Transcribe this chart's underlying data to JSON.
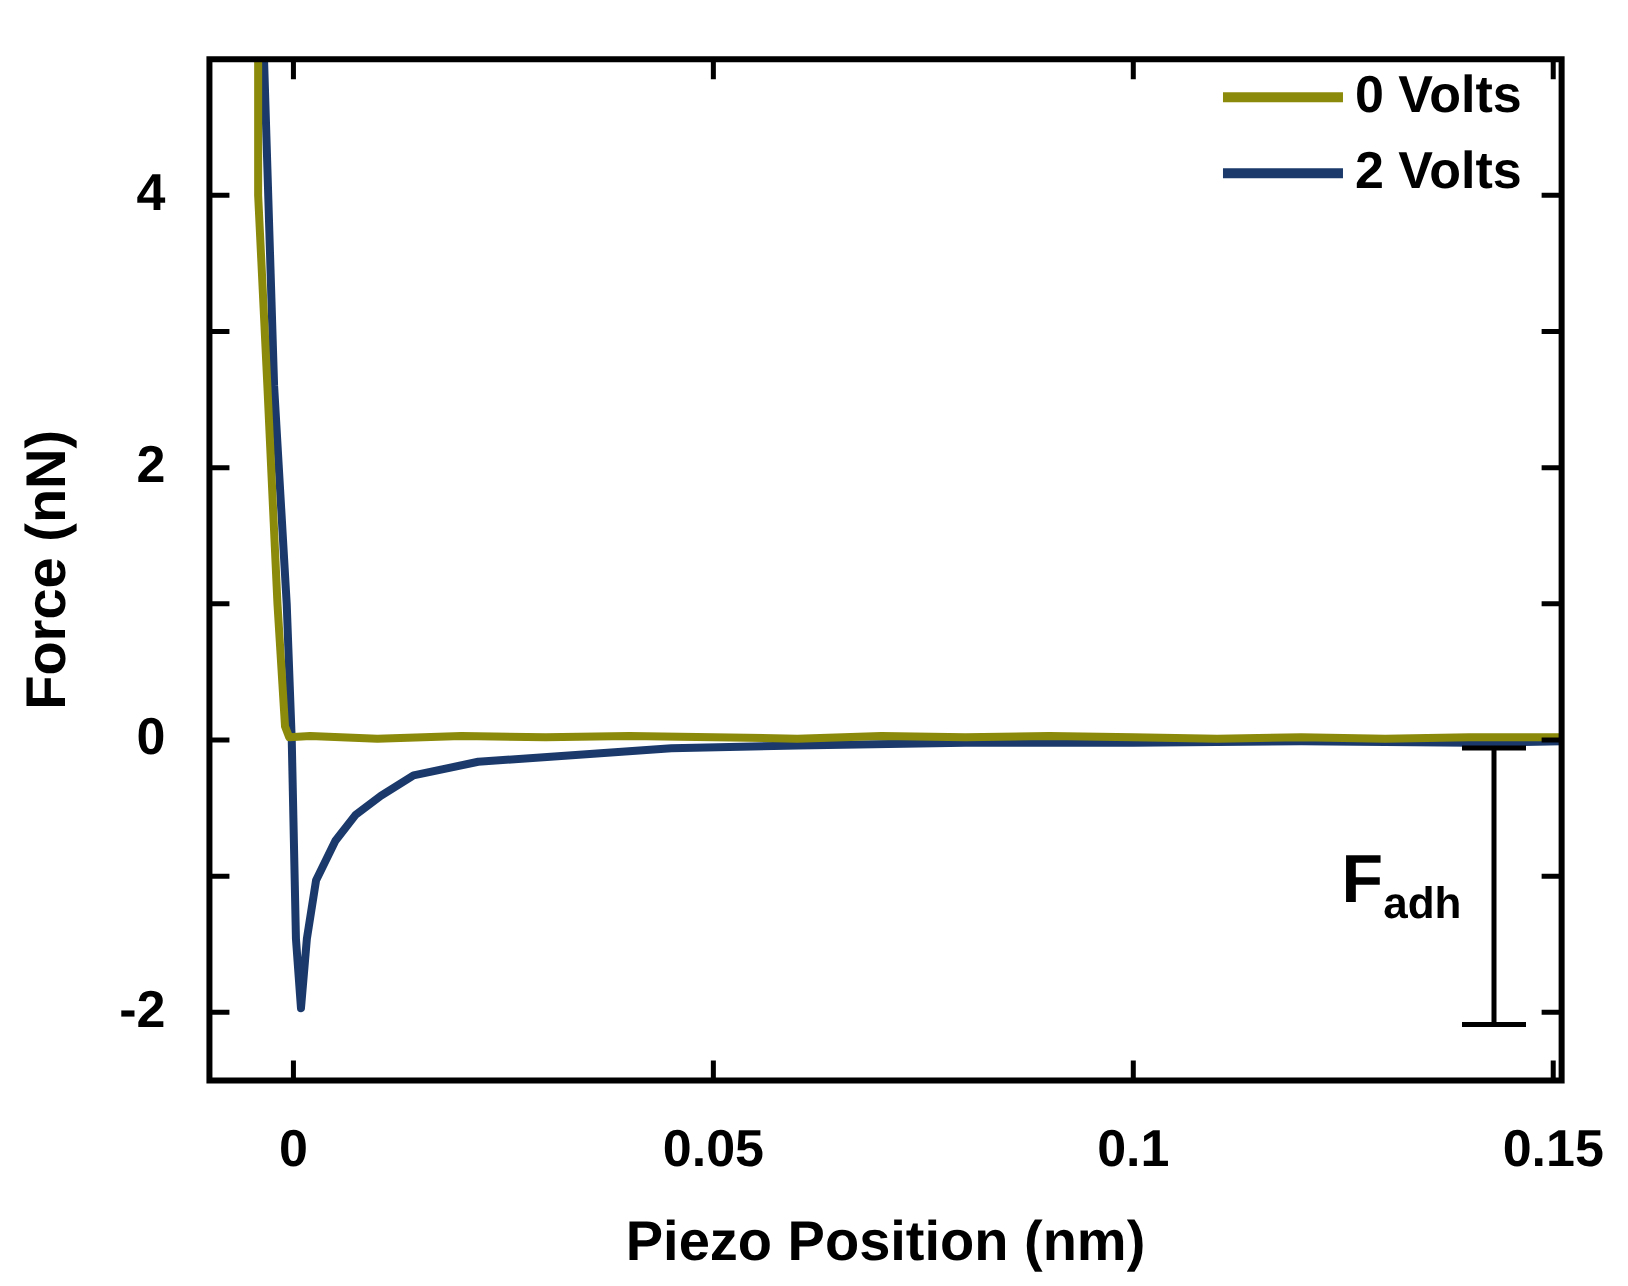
{
  "chart_data": {
    "type": "line",
    "xlabel": "Piezo Position (nm)",
    "ylabel": "Force (nN)",
    "xlim": [
      -0.01,
      0.151
    ],
    "xticks": [
      0,
      0.05,
      0.1,
      0.15
    ],
    "ylim": [
      -2.5,
      5
    ],
    "yticks": [
      {
        "value": -2,
        "label": "-2"
      },
      {
        "value": -1,
        "label": null
      },
      {
        "value": 0,
        "label": "0"
      },
      {
        "value": 1,
        "label": null
      },
      {
        "value": 2,
        "label": "2"
      },
      {
        "value": 3,
        "label": null
      },
      {
        "value": 4,
        "label": "4"
      }
    ],
    "grid": false,
    "legend": "top right",
    "marker": "none",
    "line_style": "solid",
    "annotations": [
      "F$_{adh}$"
    ],
    "series": [
      {
        "name": "0 Volts",
        "color": "#8c8a0a",
        "x": [
          -0.0042,
          -0.0042,
          -0.0031,
          -0.0019,
          -0.001,
          -0.0005,
          0.002,
          0.01,
          0.02,
          0.03,
          0.04,
          0.05,
          0.06,
          0.07,
          0.08,
          0.09,
          0.1,
          0.11,
          0.12,
          0.13,
          0.14,
          0.151
        ],
        "values": [
          5,
          4,
          2.6,
          1,
          0.1,
          0.02,
          0.03,
          0.01,
          0.03,
          0.02,
          0.03,
          0.02,
          0.01,
          0.03,
          0.02,
          0.03,
          0.02,
          0.01,
          0.02,
          0.01,
          0.02,
          0.02
        ]
      },
      {
        "name": "2 Volts",
        "color": "#1b3a6b",
        "x": [
          -0.0035,
          -0.0023,
          -0.0008,
          -0.0002,
          0.0003,
          0.0009,
          0.0016,
          0.0027,
          0.005,
          0.0074,
          0.0104,
          0.0143,
          0.022,
          0.0336,
          0.045,
          0.06,
          0.08,
          0.1,
          0.12,
          0.14,
          0.151
        ],
        "values": [
          5,
          2.6,
          1,
          0,
          -1.46,
          -1.97,
          -1.46,
          -1.03,
          -0.74,
          -0.55,
          -0.41,
          -0.26,
          -0.16,
          -0.11,
          -0.06,
          -0.04,
          -0.02,
          -0.02,
          -0.01,
          -0.02,
          -0.01
        ]
      }
    ]
  }
}
